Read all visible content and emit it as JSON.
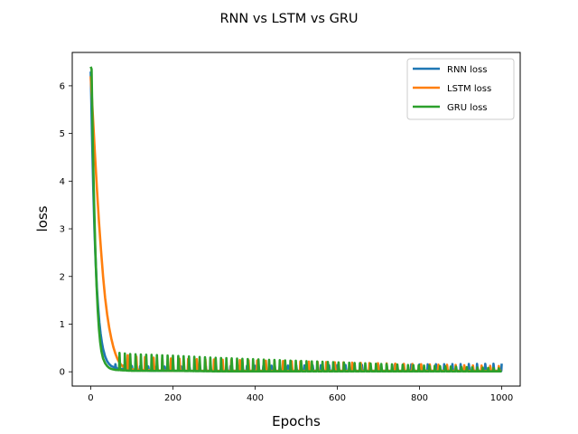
{
  "chart_data": {
    "type": "line",
    "title": "RNN vs LSTM vs GRU",
    "xlabel": "Epochs",
    "ylabel": "loss",
    "xlim": [
      -45,
      1045
    ],
    "ylim": [
      -0.3,
      6.7
    ],
    "xticks": [
      0,
      200,
      400,
      600,
      800,
      1000
    ],
    "yticks": [
      0,
      1,
      2,
      3,
      4,
      5,
      6
    ],
    "grid": false,
    "legend_position": "top-right",
    "series": [
      {
        "name": "RNN loss",
        "color": "#1f77b4",
        "points": [
          [
            0,
            6.3
          ],
          [
            3,
            5.0
          ],
          [
            6,
            3.9
          ],
          [
            9,
            3.0
          ],
          [
            12,
            2.3
          ],
          [
            15,
            1.75
          ],
          [
            18,
            1.35
          ],
          [
            21,
            1.03
          ],
          [
            24,
            0.8
          ],
          [
            27,
            0.62
          ],
          [
            30,
            0.48
          ],
          [
            35,
            0.32
          ],
          [
            40,
            0.22
          ],
          [
            45,
            0.16
          ],
          [
            50,
            0.12
          ],
          [
            55,
            0.1
          ],
          [
            60,
            0.08
          ],
          [
            70,
            0.06
          ],
          [
            80,
            0.05
          ],
          [
            90,
            0.04
          ],
          [
            100,
            0.04
          ],
          [
            110,
            0.03
          ],
          [
            130,
            0.03
          ],
          [
            150,
            0.02
          ],
          [
            200,
            0.02
          ],
          [
            300,
            0.02
          ],
          [
            400,
            0.02
          ],
          [
            500,
            0.02
          ],
          [
            600,
            0.02
          ],
          [
            700,
            0.02
          ],
          [
            800,
            0.02
          ],
          [
            900,
            0.02
          ],
          [
            1000,
            0.02
          ]
        ],
        "spikes": {
          "start": 60,
          "step": 20,
          "end": 1000,
          "amp_start": 0.08,
          "amp_end": 0.15
        }
      },
      {
        "name": "LSTM loss",
        "color": "#ff7f0e",
        "points": [
          [
            0,
            6.2
          ],
          [
            5,
            5.4
          ],
          [
            10,
            4.6
          ],
          [
            15,
            3.85
          ],
          [
            20,
            3.15
          ],
          [
            25,
            2.55
          ],
          [
            30,
            2.0
          ],
          [
            35,
            1.55
          ],
          [
            40,
            1.2
          ],
          [
            45,
            0.92
          ],
          [
            50,
            0.7
          ],
          [
            55,
            0.52
          ],
          [
            60,
            0.38
          ],
          [
            65,
            0.27
          ],
          [
            70,
            0.19
          ],
          [
            75,
            0.14
          ],
          [
            80,
            0.1
          ],
          [
            90,
            0.07
          ],
          [
            100,
            0.05
          ],
          [
            120,
            0.04
          ],
          [
            150,
            0.03
          ],
          [
            200,
            0.02
          ],
          [
            300,
            0.02
          ],
          [
            400,
            0.02
          ],
          [
            500,
            0.02
          ],
          [
            600,
            0.02
          ],
          [
            700,
            0.02
          ],
          [
            800,
            0.02
          ],
          [
            900,
            0.02
          ],
          [
            1000,
            0.02
          ]
        ],
        "spikes": {
          "start": 90,
          "step": 21,
          "end": 1000,
          "amp_start": 0.28,
          "amp_end": 0.1
        }
      },
      {
        "name": "GRU loss",
        "color": "#2ca02c",
        "points": [
          [
            0,
            6.4
          ],
          [
            2,
            6.35
          ],
          [
            5,
            4.8
          ],
          [
            8,
            3.6
          ],
          [
            11,
            2.6
          ],
          [
            14,
            1.85
          ],
          [
            17,
            1.3
          ],
          [
            20,
            0.9
          ],
          [
            23,
            0.62
          ],
          [
            26,
            0.43
          ],
          [
            30,
            0.28
          ],
          [
            35,
            0.18
          ],
          [
            40,
            0.12
          ],
          [
            45,
            0.08
          ],
          [
            50,
            0.06
          ],
          [
            60,
            0.04
          ],
          [
            80,
            0.03
          ],
          [
            100,
            0.02
          ],
          [
            200,
            0.02
          ],
          [
            300,
            0.01
          ],
          [
            400,
            0.01
          ],
          [
            500,
            0.01
          ],
          [
            600,
            0.01
          ],
          [
            700,
            0.01
          ],
          [
            800,
            0.01
          ],
          [
            900,
            0.01
          ],
          [
            1000,
            0.01
          ]
        ],
        "spikes": {
          "start": 70,
          "step": 13,
          "end": 1000,
          "amp_start": 0.36,
          "amp_end": 0.06
        }
      }
    ]
  }
}
